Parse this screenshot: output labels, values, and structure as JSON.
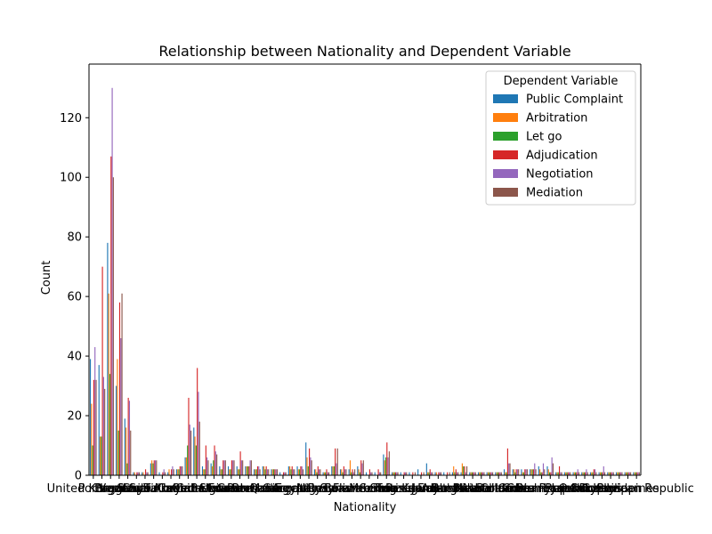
{
  "chart_data": {
    "type": "bar",
    "title": "Relationship between Nationality and Dependent Variable",
    "xlabel": "Nationality",
    "ylabel": "Count",
    "ylim": [
      0,
      138
    ],
    "yticks": [
      0,
      20,
      40,
      60,
      80,
      100,
      120
    ],
    "grid": false,
    "legend": {
      "title": "Dependent Variable",
      "position": "top-right"
    },
    "categories": [
      "United Kingdom",
      "Portugal",
      "Brazil",
      "Uruguay",
      "Venezuela",
      "Chile",
      "Spain",
      "Saudi Arabia",
      "Turkey",
      "Korea",
      "Canada",
      "China",
      "United States",
      "Cameroon",
      "Belgium",
      "Ukraine",
      "Ecuador",
      "Peru",
      "Guatemala",
      "Romania",
      "Qatar",
      "Morocco",
      "Greece",
      "Egypt",
      "Argentina",
      "Italy",
      "Nigeria",
      "Russia",
      "Syria",
      "Bolivia",
      "France",
      "Luxembourg",
      "Mexico",
      "Serbia",
      "Iran",
      "Tunisia",
      "Switzerland",
      "Paraguay",
      "Kuwait",
      "Jordan",
      "Finland",
      "Australia",
      "Bulgaria",
      "Lebanon",
      "Poland",
      "Austria",
      "Netherlands",
      "Bahrain",
      "Colombia",
      "India",
      "Germany",
      "Costa Rica",
      "Denmark",
      "Czech Republic",
      "Israel",
      "Japan",
      "Oman",
      "Cuba",
      "Norway",
      "Cyprus",
      "Latvia",
      "Sweden",
      "Philippines",
      "Dominican Republic"
    ],
    "xtick_labels": [
      "United Kingdom",
      "Portugal",
      "Brazil",
      "Uruguay",
      "Venezuela",
      "Chile",
      "Spain",
      "Saudi Arabia",
      "Turkey",
      "Korea",
      "Canada",
      "China",
      "United States",
      "Cameroon",
      "Belgium",
      "Ukraine",
      "Ecuador",
      "Peru",
      "Guatemala",
      "Romania",
      "Qatar",
      "Morocco",
      "Greece",
      "Egypt",
      "Argentina",
      "Italy",
      "Nigeria",
      "Russia",
      "Syria",
      "Bolivia",
      "France",
      "Luxembourg",
      "Mexico",
      "Serbia",
      "Iran",
      "Tunisia",
      "Switzerland",
      "Paraguay",
      "Kuwait",
      "Jordan",
      "Finland",
      "Australia",
      "Bulgaria",
      "Lebanon",
      "Poland",
      "Austria",
      "Netherlands",
      "Bahrain",
      "Colombia",
      "India",
      "Germany",
      "Costa Rica",
      "Denmark",
      "Czech Republic",
      "Israel",
      "Japan",
      "Oman",
      "Cuba",
      "Norway",
      "Cyprus",
      "Latvia",
      "Sweden",
      "Philippines",
      "Dominican Republic"
    ],
    "series": [
      {
        "name": "Public Complaint",
        "color": "#1f77b4",
        "values": [
          39,
          37,
          78,
          30,
          19,
          1,
          1,
          4,
          1,
          1,
          2,
          6,
          16,
          3,
          4,
          3,
          3,
          3,
          3,
          2,
          3,
          2,
          1,
          3,
          3,
          11,
          2,
          1,
          3,
          2,
          2,
          3,
          1,
          1,
          7,
          1,
          1,
          1,
          2,
          4,
          1,
          1,
          1,
          1,
          1,
          1,
          1,
          1,
          2,
          2,
          2,
          2,
          3,
          3,
          1,
          1,
          1,
          1,
          1,
          1,
          1,
          1,
          1,
          1
        ]
      },
      {
        "name": "Arbitration",
        "color": "#ff7f0e",
        "values": [
          24,
          13,
          61,
          39,
          16,
          1,
          1,
          5,
          0,
          2,
          2,
          6,
          13,
          2,
          3,
          2,
          2,
          2,
          3,
          2,
          3,
          2,
          0,
          3,
          2,
          6,
          2,
          1,
          3,
          2,
          5,
          2,
          0,
          0,
          5,
          1,
          0,
          0,
          0,
          1,
          1,
          0,
          3,
          4,
          1,
          1,
          1,
          1,
          1,
          2,
          1,
          2,
          2,
          2,
          1,
          1,
          1,
          1,
          1,
          1,
          1,
          1,
          1,
          1
        ]
      },
      {
        "name": "Let go",
        "color": "#2ca02c",
        "values": [
          10,
          13,
          34,
          15,
          4,
          0,
          0,
          4,
          0,
          0,
          2,
          10,
          10,
          2,
          5,
          2,
          2,
          2,
          3,
          2,
          2,
          2,
          0,
          2,
          2,
          3,
          1,
          1,
          3,
          1,
          1,
          1,
          0,
          0,
          6,
          1,
          0,
          0,
          0,
          1,
          0,
          0,
          1,
          3,
          1,
          1,
          1,
          1,
          1,
          1,
          1,
          2,
          1,
          1,
          1,
          1,
          1,
          1,
          1,
          1,
          1,
          1,
          1,
          1
        ]
      },
      {
        "name": "Adjudication",
        "color": "#d62728",
        "values": [
          32,
          70,
          107,
          58,
          26,
          1,
          2,
          5,
          1,
          2,
          3,
          26,
          36,
          10,
          10,
          5,
          5,
          8,
          3,
          3,
          3,
          2,
          1,
          3,
          3,
          9,
          3,
          2,
          9,
          3,
          2,
          5,
          2,
          2,
          11,
          1,
          1,
          1,
          1,
          2,
          1,
          1,
          2,
          3,
          1,
          1,
          1,
          1,
          9,
          2,
          2,
          2,
          1,
          1,
          3,
          1,
          1,
          1,
          2,
          1,
          1,
          1,
          1,
          1
        ]
      },
      {
        "name": "Negotiation",
        "color": "#9467bd",
        "values": [
          43,
          33,
          130,
          46,
          25,
          1,
          1,
          5,
          2,
          3,
          3,
          17,
          28,
          6,
          8,
          5,
          5,
          5,
          5,
          3,
          2,
          2,
          1,
          2,
          3,
          6,
          2,
          1,
          4,
          2,
          1,
          4,
          1,
          1,
          6,
          1,
          1,
          0,
          0,
          1,
          1,
          0,
          1,
          1,
          1,
          1,
          1,
          1,
          4,
          2,
          2,
          4,
          4,
          6,
          1,
          1,
          2,
          2,
          2,
          3,
          1,
          1,
          1,
          1
        ]
      },
      {
        "name": "Mediation",
        "color": "#8c564b",
        "values": [
          32,
          29,
          100,
          61,
          15,
          1,
          1,
          5,
          1,
          2,
          3,
          15,
          18,
          5,
          7,
          5,
          5,
          5,
          5,
          2,
          2,
          2,
          1,
          2,
          2,
          5,
          2,
          1,
          9,
          2,
          2,
          5,
          1,
          1,
          8,
          1,
          1,
          1,
          1,
          1,
          1,
          1,
          1,
          3,
          1,
          1,
          1,
          1,
          4,
          2,
          2,
          2,
          2,
          4,
          1,
          1,
          1,
          1,
          1,
          1,
          1,
          1,
          1,
          1
        ]
      }
    ]
  }
}
